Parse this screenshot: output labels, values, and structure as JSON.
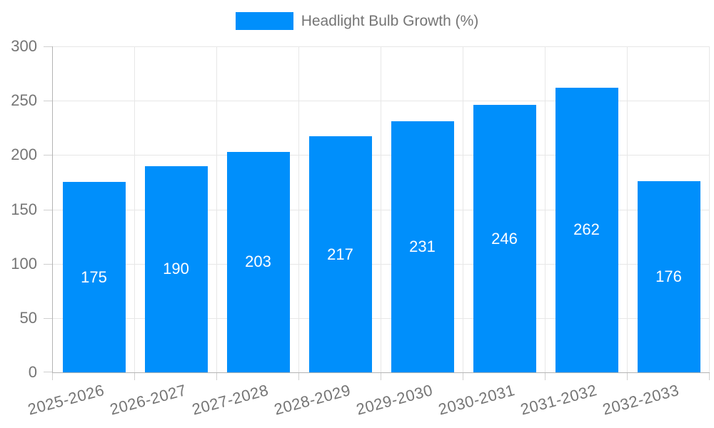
{
  "legend": {
    "label": "Headlight Bulb Growth (%)",
    "swatch_color": "#008FFB"
  },
  "chart_data": {
    "type": "bar",
    "title": "",
    "categories": [
      "2025-2026",
      "2026-2027",
      "2027-2028",
      "2028-2029",
      "2029-2030",
      "2030-2031",
      "2031-2032",
      "2032-2033"
    ],
    "series": [
      {
        "name": "Headlight Bulb Growth (%)",
        "values": [
          175,
          190,
          203,
          217,
          231,
          246,
          262,
          176
        ]
      }
    ],
    "xlabel": "",
    "ylabel": "",
    "ylim": [
      0,
      300
    ],
    "yticks": [
      0,
      50,
      100,
      150,
      200,
      250,
      300
    ],
    "grid": true,
    "legend_position": "top",
    "x_label_rotation_deg": -15,
    "data_labels": "inside-center",
    "colors": {
      "bar": "#008FFB",
      "bar_label": "#FFFFFF",
      "axis_text": "#757575",
      "grid_line": "#E7E7E7",
      "axis_line": "#B3B3B3",
      "tick": "#CFCFCF"
    }
  }
}
